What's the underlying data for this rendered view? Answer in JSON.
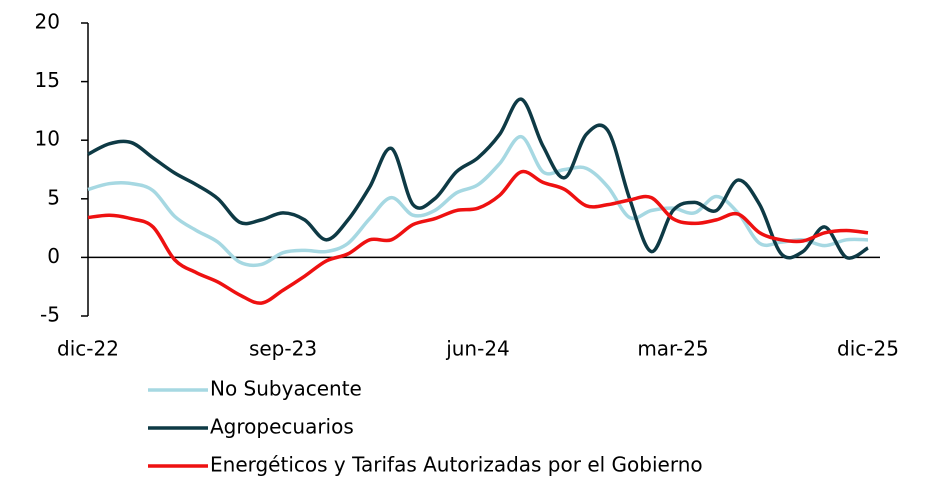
{
  "chart_data": {
    "type": "line",
    "categories": [
      "dic-22",
      null,
      null,
      null,
      null,
      null,
      null,
      null,
      null,
      "sep-23",
      null,
      null,
      null,
      null,
      null,
      null,
      null,
      null,
      "jun-24",
      null,
      null,
      null,
      null,
      null,
      null,
      null,
      null,
      "mar-25",
      null,
      null,
      null,
      null,
      null,
      null,
      null,
      null,
      "dic-25"
    ],
    "series": [
      {
        "name": "No Subyacente",
        "color": "#a6d8e2",
        "values": [
          5.8,
          6.3,
          6.3,
          5.7,
          3.5,
          2.3,
          1.3,
          -0.4,
          -0.6,
          0.4,
          0.6,
          0.5,
          1.2,
          3.3,
          5.1,
          3.6,
          4,
          5.5,
          6.2,
          8,
          10.3,
          7.3,
          7.5,
          7.6,
          6,
          3.4,
          4,
          4.2,
          3.8,
          5.2,
          3.8,
          1.2,
          1.3,
          1.5,
          1,
          1.5,
          1.5
        ]
      },
      {
        "name": "Agropecuarios",
        "color": "#0e3a45",
        "values": [
          8.8,
          9.7,
          9.8,
          8.5,
          7.2,
          6.2,
          5,
          3,
          3.2,
          3.8,
          3.2,
          1.5,
          3.2,
          6,
          9.3,
          4.5,
          5,
          7.3,
          8.5,
          10.5,
          13.5,
          9.5,
          6.8,
          10.5,
          10.8,
          5,
          0.5,
          4,
          4.7,
          4,
          6.6,
          4.5,
          0.3,
          0.5,
          2.6,
          0,
          0.8
        ]
      },
      {
        "name": "Energéticos y Tarifas Autorizadas por el Gobierno",
        "color": "#ee1111",
        "values": [
          3.4,
          3.6,
          3.3,
          2.6,
          -0.2,
          -1.3,
          -2.1,
          -3.2,
          -3.9,
          -2.8,
          -1.6,
          -0.3,
          0.3,
          1.5,
          1.5,
          2.8,
          3.3,
          4,
          4.2,
          5.3,
          7.3,
          6.4,
          5.8,
          4.4,
          4.5,
          4.9,
          5.1,
          3.3,
          2.9,
          3.2,
          3.7,
          2.1,
          1.5,
          1.4,
          2.1,
          2.3,
          2.1
        ]
      }
    ],
    "ylim": [
      -5,
      20
    ],
    "yticks": [
      -5,
      0,
      5,
      10,
      15,
      20
    ],
    "grid": false
  }
}
